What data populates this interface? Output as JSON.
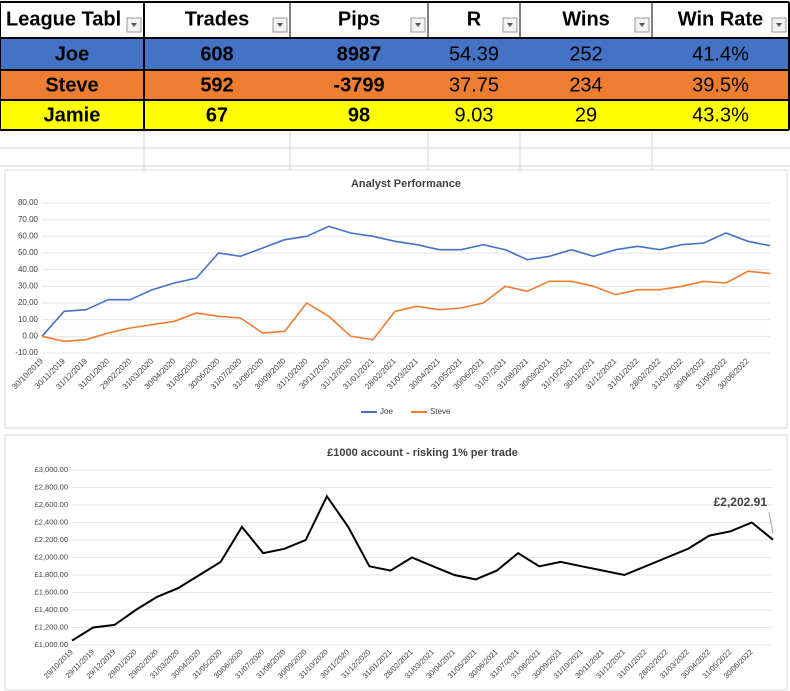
{
  "table": {
    "columns": [
      "League Tabl",
      "Trades",
      "Pips",
      "R",
      "Wins",
      "Win Rate"
    ],
    "rows": [
      [
        "Joe",
        "608",
        "8987",
        "54.39",
        "252",
        "41.4%"
      ],
      [
        "Steve",
        "592",
        "-3799",
        "37.75",
        "234",
        "39.5%"
      ],
      [
        "Jamie",
        "67",
        "98",
        "9.03",
        "29",
        "43.3%"
      ]
    ],
    "row_colors": [
      "#4472c4",
      "#ed7d31",
      "#ffff00"
    ]
  },
  "chart_data": [
    {
      "type": "line",
      "title": "Analyst Performance",
      "categories": [
        "30/10/2019",
        "30/11/2019",
        "31/12/2019",
        "31/01/2020",
        "29/02/2020",
        "31/03/2020",
        "30/04/2020",
        "31/05/2020",
        "30/06/2020",
        "31/07/2020",
        "31/08/2020",
        "30/09/2020",
        "31/10/2020",
        "30/11/2020",
        "31/12/2020",
        "31/01/2021",
        "28/02/2021",
        "31/03/2021",
        "30/04/2021",
        "31/05/2021",
        "30/06/2021",
        "31/07/2021",
        "31/08/2021",
        "30/09/2021",
        "31/10/2021",
        "30/11/2021",
        "31/12/2021",
        "31/01/2022",
        "28/02/2022",
        "31/03/2022",
        "30/04/2022",
        "31/05/2022",
        "30/06/2022",
        null
      ],
      "series": [
        {
          "name": "Joe",
          "color": "#4472c4",
          "values": [
            0,
            15,
            16,
            22,
            22,
            28,
            32,
            35,
            50,
            48,
            53,
            58,
            60,
            66,
            62,
            60,
            57,
            55,
            52,
            52,
            55,
            52,
            46,
            48,
            52,
            48,
            52,
            54,
            52,
            55,
            56,
            62,
            57,
            54.39
          ]
        },
        {
          "name": "Steve",
          "color": "#ed7d31",
          "values": [
            0,
            -3,
            -2,
            2,
            5,
            7,
            9,
            14,
            12,
            11,
            2,
            3,
            20,
            12,
            0,
            -2,
            15,
            18,
            16,
            17,
            20,
            30,
            27,
            33,
            33,
            30,
            25,
            28,
            28,
            30,
            33,
            32,
            39,
            37.75
          ]
        }
      ],
      "ylim": [
        -10,
        80
      ],
      "yticks": [
        {
          "value": -10,
          "label": "-10.00"
        },
        {
          "value": 0,
          "label": "0.00"
        },
        {
          "value": 10,
          "label": "10.00"
        },
        {
          "value": 20,
          "label": "20.00"
        },
        {
          "value": 30,
          "label": "30.00"
        },
        {
          "value": 40,
          "label": "40.00"
        },
        {
          "value": 50,
          "label": "50.00"
        },
        {
          "value": 60,
          "label": "60.00"
        },
        {
          "value": 70,
          "label": "70.00"
        },
        {
          "value": 80,
          "label": "80.00"
        }
      ],
      "legend": "bottom"
    },
    {
      "type": "line",
      "title": "£1000 account - risking 1% per trade",
      "categories": [
        "29/10/2019",
        "29/11/2019",
        "29/12/2019",
        "29/01/2020",
        "29/02/2020",
        "31/03/2020",
        "30/04/2020",
        "31/05/2020",
        "30/06/2020",
        "31/07/2020",
        "31/08/2020",
        "30/09/2020",
        "31/10/2020",
        "30/11/2020",
        "31/12/2020",
        "31/01/2021",
        "28/02/2021",
        "31/03/2021",
        "30/04/2021",
        "31/05/2021",
        "30/06/2021",
        "31/07/2021",
        "31/08/2021",
        "30/09/2021",
        "31/10/2021",
        "30/11/2021",
        "31/12/2021",
        "31/01/2022",
        "28/02/2022",
        "31/03/2022",
        "30/04/2022",
        "31/05/2022",
        "30/06/2022",
        null
      ],
      "color": "#000000",
      "values": [
        1050,
        1200,
        1230,
        1400,
        1550,
        1650,
        1800,
        1950,
        2350,
        2050,
        2100,
        2200,
        2700,
        2350,
        1900,
        1850,
        2000,
        1900,
        1800,
        1750,
        1850,
        2050,
        1900,
        1950,
        1900,
        1850,
        1800,
        1900,
        2000,
        2100,
        2250,
        2300,
        2400,
        2202.91
      ],
      "value_labels": [
        null,
        null,
        null,
        null,
        null,
        null,
        null,
        null,
        null,
        null,
        null,
        null,
        null,
        null,
        null,
        null,
        null,
        null,
        null,
        null,
        null,
        null,
        null,
        null,
        null,
        null,
        null,
        null,
        null,
        null,
        null,
        null,
        null,
        "£2,202.91"
      ],
      "ylim": [
        1000,
        3000
      ],
      "yticks": [
        {
          "value": 1000,
          "label": "£1,000.00"
        },
        {
          "value": 1200,
          "label": "£1,200.00"
        },
        {
          "value": 1400,
          "label": "£1,400.00"
        },
        {
          "value": 1600,
          "label": "£1,600.00"
        },
        {
          "value": 1800,
          "label": "£1,800.00"
        },
        {
          "value": 2000,
          "label": "£2,000.00"
        },
        {
          "value": 2200,
          "label": "£2,200.00"
        },
        {
          "value": 2400,
          "label": "£2,400.00"
        },
        {
          "value": 2600,
          "label": "£2,600.00"
        },
        {
          "value": 2800,
          "label": "£2,800.00"
        },
        {
          "value": 3000,
          "label": "£3,000.00"
        }
      ]
    }
  ]
}
